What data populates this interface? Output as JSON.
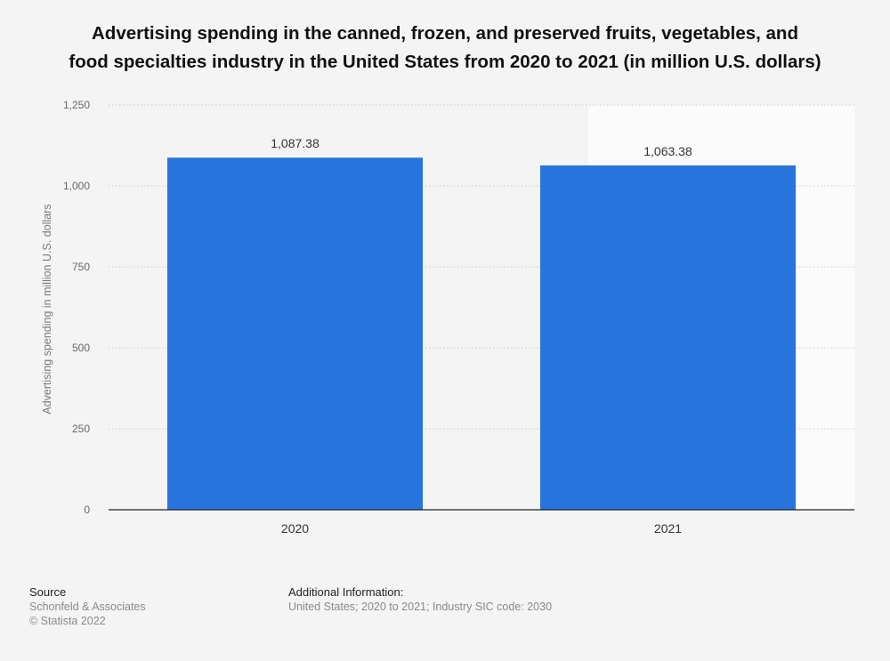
{
  "chart_data": {
    "type": "bar",
    "title_lines": [
      "Advertising spending in the canned, frozen, and preserved fruits, vegetables, and",
      "food specialties industry in the United States from 2020 to 2021 (in million U.S. dollars)"
    ],
    "categories": [
      "2020",
      "2021"
    ],
    "values": [
      1087.38,
      1063.38
    ],
    "value_labels": [
      "1,087.38",
      "1,063.38"
    ],
    "xlabel": "",
    "ylabel": "Advertising spending in million U.S. dollars",
    "ylim": [
      0,
      1250
    ],
    "yticks": [
      0,
      250,
      500,
      750,
      1000,
      1250
    ],
    "ytick_labels": [
      "0",
      "250",
      "500",
      "750",
      "1,000",
      "1,250"
    ],
    "grid": true,
    "legend": "none",
    "bar_color": "#2775dc"
  },
  "footer": {
    "source_heading": "Source",
    "source_lines": [
      "Schonfeld & Associates",
      "© Statista 2022"
    ],
    "additional_heading": "Additional Information:",
    "additional_lines": [
      "United States; 2020 to 2021; Industry SIC code: 2030"
    ]
  },
  "colors": {
    "background": "#f4f4f4",
    "highlight_band": "#fbfbfb",
    "gridline": "#c8c8c8",
    "axis": "#222222",
    "tick_text": "#666666",
    "label_text": "#333333"
  }
}
